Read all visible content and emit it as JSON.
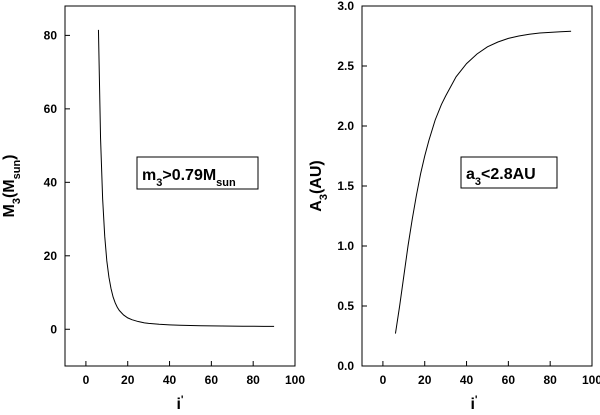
{
  "chart_data": [
    {
      "type": "line",
      "xlabel": {
        "main": "i",
        "sup": "'"
      },
      "ylabel": {
        "main": "M",
        "sub": "3",
        "open": "(M",
        "sub2": "sun",
        "close": ")"
      },
      "xlim": [
        -10,
        100
      ],
      "ylim": [
        -10,
        88
      ],
      "xticks": [
        0,
        20,
        40,
        60,
        80,
        100
      ],
      "yticks": [
        0,
        20,
        40,
        60,
        80
      ],
      "xtick_labels": [
        "0",
        "20",
        "40",
        "60",
        "80",
        "100"
      ],
      "ytick_labels": [
        "0",
        "20",
        "40",
        "60",
        "80"
      ],
      "grid": false,
      "annotation": {
        "p1": "m",
        "sub1": "3",
        "p2": ">0.79M",
        "sub2": "sun"
      },
      "series": [
        {
          "x": [
            6,
            7,
            8,
            9,
            10,
            11,
            12,
            13,
            14,
            15,
            16,
            18,
            20,
            22,
            25,
            28,
            30,
            35,
            40,
            45,
            50,
            55,
            60,
            65,
            70,
            75,
            80,
            85,
            90
          ],
          "y": [
            81.5,
            52,
            35.5,
            25.3,
            18.6,
            14.2,
            11.1,
            8.8,
            7.2,
            6.0,
            5.1,
            3.9,
            3.1,
            2.6,
            2.1,
            1.75,
            1.6,
            1.35,
            1.2,
            1.1,
            1.02,
            0.96,
            0.92,
            0.88,
            0.85,
            0.83,
            0.81,
            0.8,
            0.79
          ]
        }
      ]
    },
    {
      "type": "line",
      "xlabel": {
        "main": "i",
        "sup": "'"
      },
      "ylabel": {
        "main": "A",
        "sub": "3",
        "rest": "(AU)"
      },
      "xlim": [
        -10,
        100
      ],
      "ylim": [
        0,
        3.0
      ],
      "xticks": [
        0,
        20,
        40,
        60,
        80,
        100
      ],
      "yticks": [
        0.0,
        0.5,
        1.0,
        1.5,
        2.0,
        2.5,
        3.0
      ],
      "xtick_labels": [
        "0",
        "20",
        "40",
        "60",
        "80",
        "100"
      ],
      "ytick_labels": [
        "0.0",
        "0.5",
        "1.0",
        "1.5",
        "2.0",
        "2.5",
        "3.0"
      ],
      "grid": false,
      "annotation": {
        "p1": "a",
        "sub1": "3",
        "p2": "<2.8AU"
      },
      "series": [
        {
          "x": [
            6,
            8,
            10,
            12,
            14,
            16,
            18,
            20,
            22,
            25,
            28,
            30,
            35,
            40,
            45,
            50,
            55,
            60,
            65,
            70,
            75,
            80,
            85,
            90
          ],
          "y": [
            0.27,
            0.5,
            0.75,
            1.0,
            1.22,
            1.42,
            1.6,
            1.75,
            1.88,
            2.05,
            2.18,
            2.25,
            2.41,
            2.52,
            2.6,
            2.66,
            2.7,
            2.73,
            2.75,
            2.765,
            2.775,
            2.78,
            2.785,
            2.79
          ]
        }
      ]
    }
  ]
}
